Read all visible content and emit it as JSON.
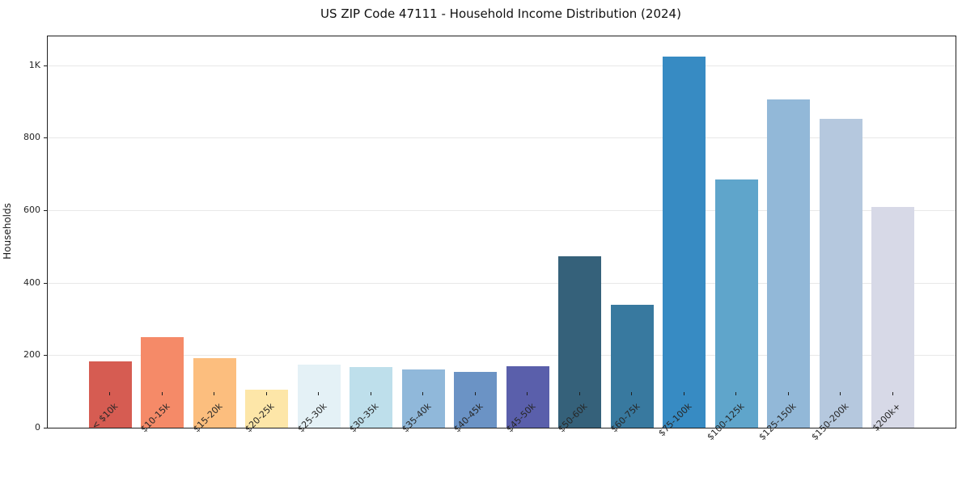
{
  "chart_data": {
    "type": "bar",
    "title": "US ZIP Code 47111 - Household Income Distribution (2024)",
    "xlabel": "",
    "ylabel": "Households",
    "categories": [
      "< $10k",
      "$10-15k",
      "$15-20k",
      "$20-25k",
      "$25-30k",
      "$30-35k",
      "$35-40k",
      "$40-45k",
      "$45-50k",
      "$50-60k",
      "$60-75k",
      "$75-100k",
      "$100-125k",
      "$125-150k",
      "$150-200k",
      "$200k+"
    ],
    "values": [
      182,
      249,
      193,
      104,
      173,
      167,
      160,
      155,
      170,
      472,
      339,
      1025,
      685,
      906,
      853,
      610
    ],
    "bar_colors": [
      "#d65c52",
      "#f58a68",
      "#fcbe7e",
      "#fde6a8",
      "#e4f1f6",
      "#bedfeb",
      "#90b8da",
      "#6b93c5",
      "#5a5fab",
      "#35617a",
      "#38799f",
      "#378bc3",
      "#5fa5cb",
      "#92b8d8",
      "#b5c8de",
      "#d7d9e7"
    ],
    "ylim": [
      0,
      1080
    ],
    "yticks": [
      {
        "value": 0,
        "label": "0"
      },
      {
        "value": 200,
        "label": "200"
      },
      {
        "value": 400,
        "label": "400"
      },
      {
        "value": 600,
        "label": "600"
      },
      {
        "value": 800,
        "label": "800"
      },
      {
        "value": 1000,
        "label": "1K"
      }
    ],
    "grid": "horizontal",
    "legend": "none"
  },
  "colors": {
    "background": "#ffffff",
    "spine": "#1f1f1f",
    "gridline": "#e8e8e8",
    "text": "#262626"
  }
}
